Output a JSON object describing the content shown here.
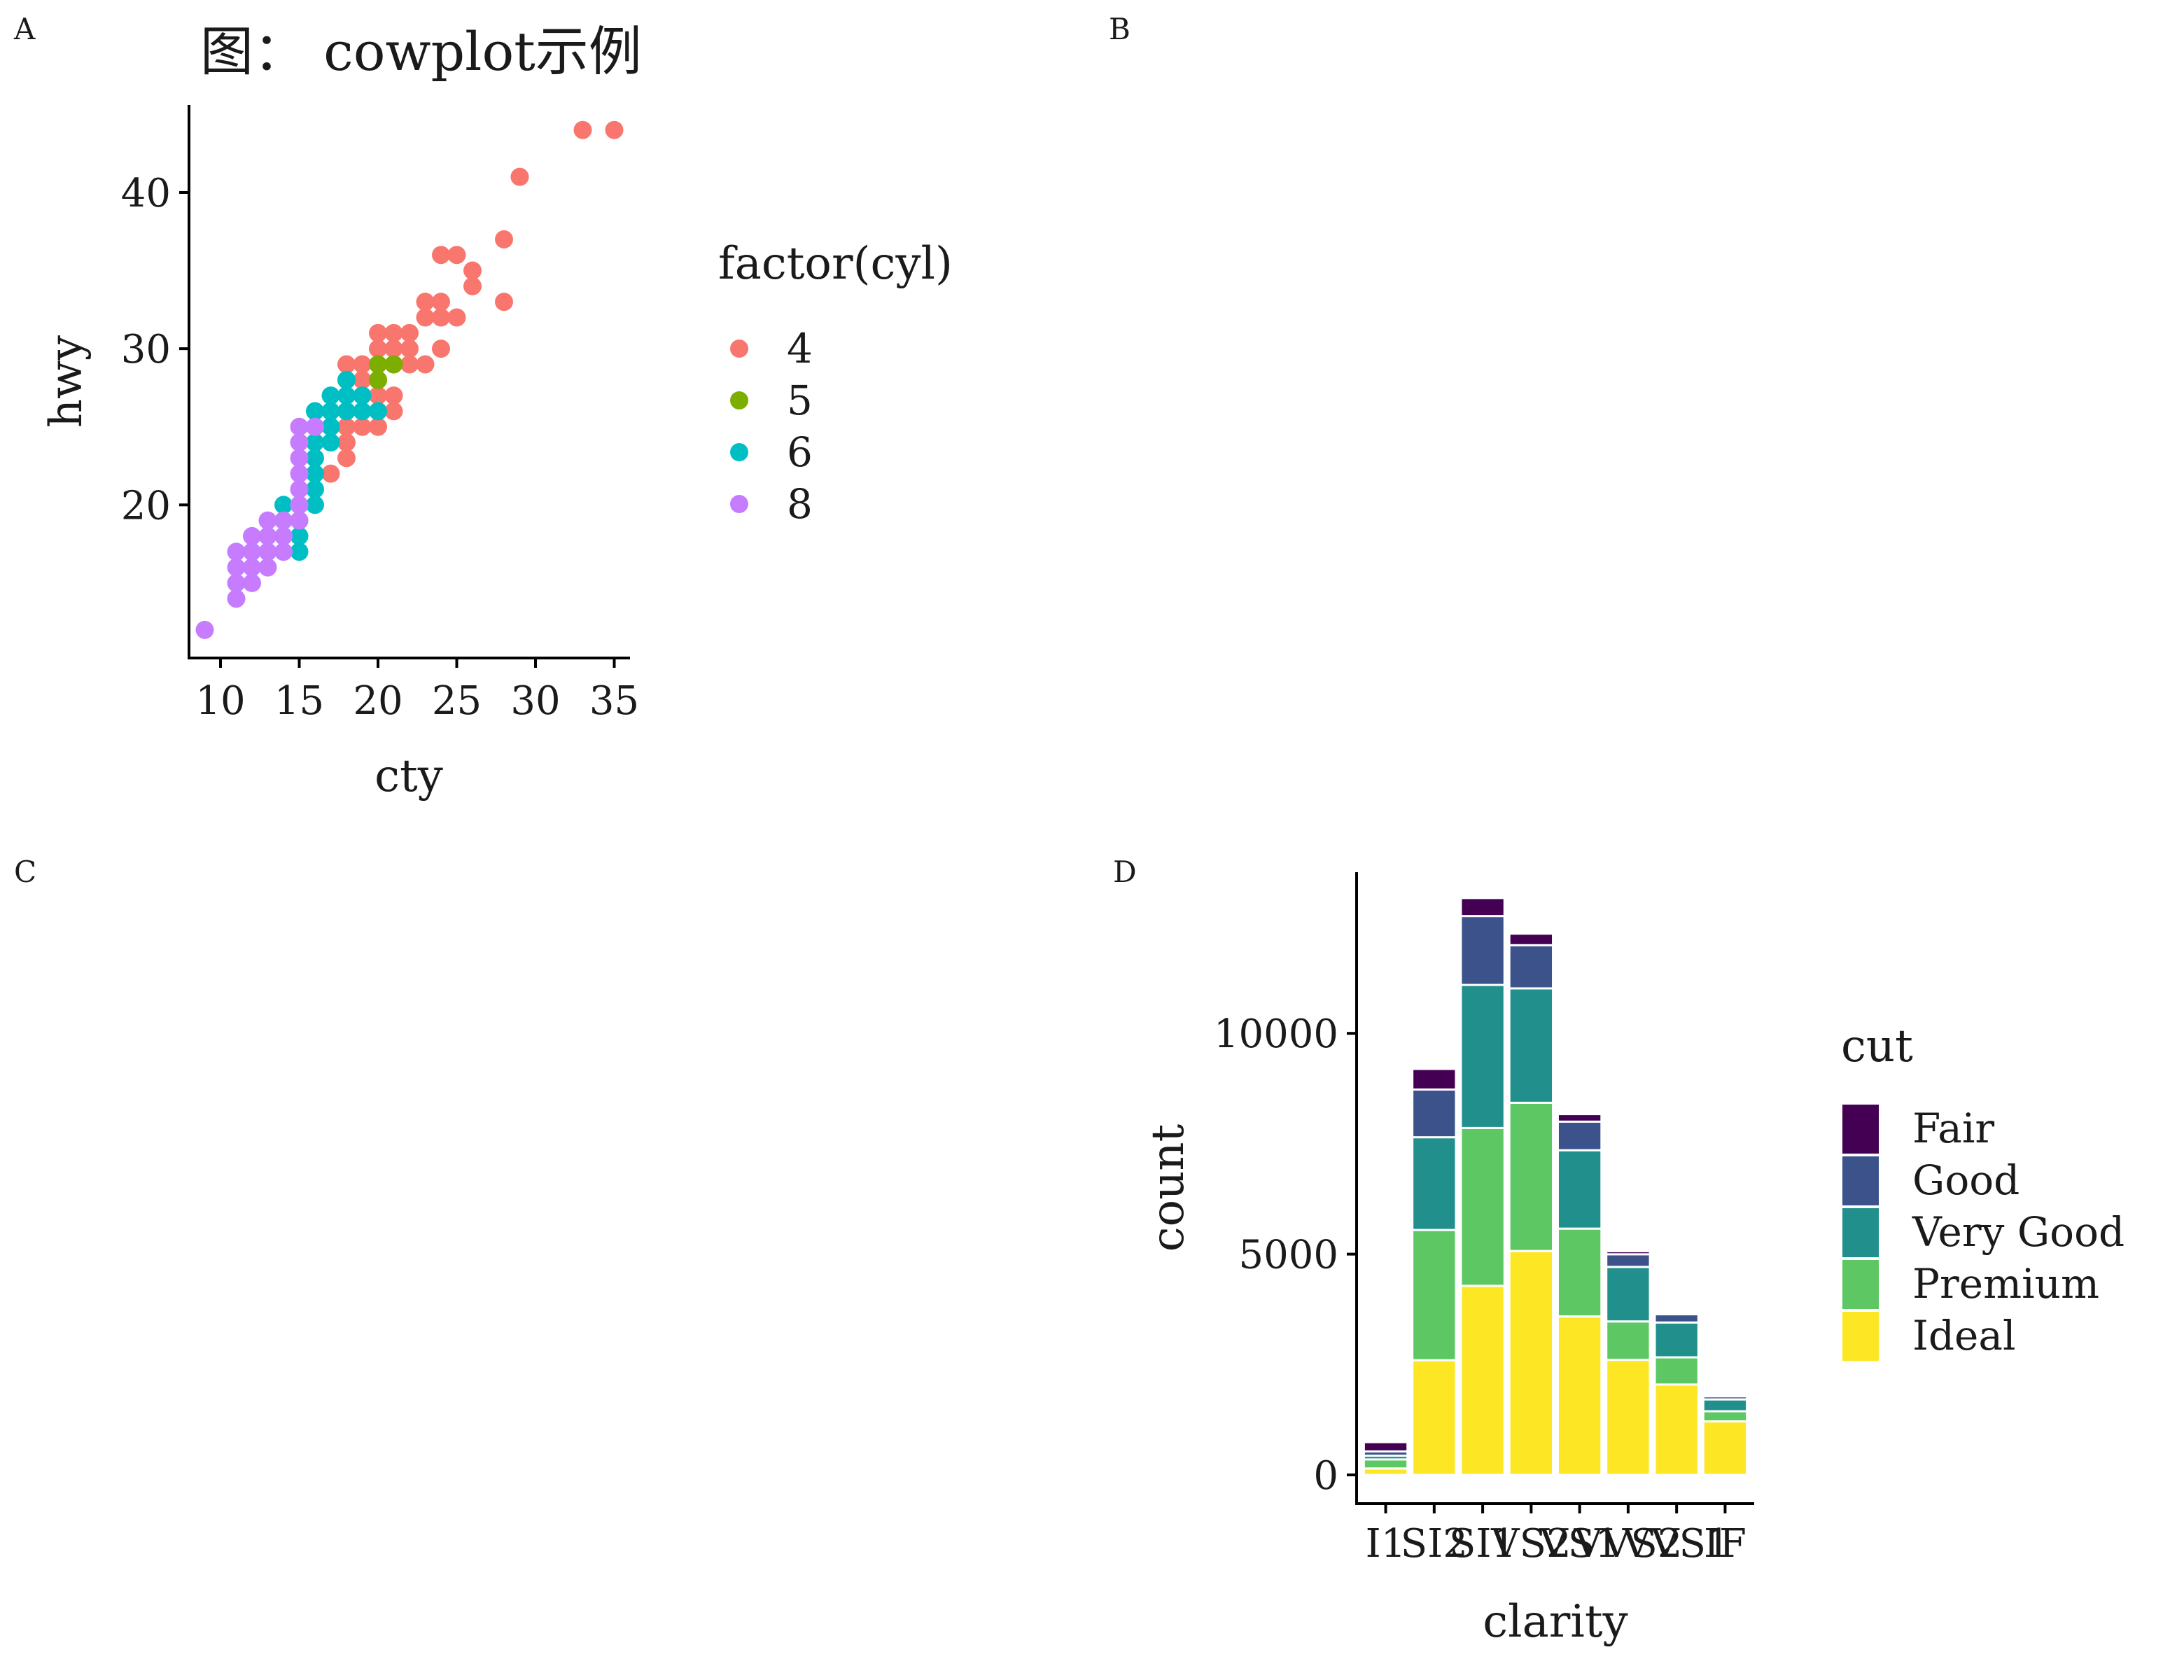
{
  "panel_labels": [
    "A",
    "B",
    "C",
    "D"
  ],
  "chart_data": [
    {
      "panel": "A",
      "type": "scatter",
      "title": "图： cowplot示例",
      "xlabel": "cty",
      "ylabel": "hwy",
      "xlim": [
        8,
        36
      ],
      "ylim": [
        10.2,
        45.6
      ],
      "x_ticks": [
        10,
        15,
        20,
        25,
        30,
        35
      ],
      "y_ticks": [
        20,
        30,
        40
      ],
      "grid": false,
      "legend": {
        "title": "factor(cyl)",
        "position": "right"
      },
      "series": [
        {
          "name": "4",
          "color": "#F8766D",
          "points": [
            [
              15,
              20
            ],
            [
              18,
              25
            ],
            [
              19,
              25
            ],
            [
              20,
              25
            ],
            [
              20,
              26
            ],
            [
              21,
              26
            ],
            [
              19,
              27
            ],
            [
              20,
              27
            ],
            [
              21,
              27
            ],
            [
              18,
              28
            ],
            [
              19,
              28
            ],
            [
              20,
              28
            ],
            [
              21,
              29
            ],
            [
              22,
              29
            ],
            [
              23,
              29
            ],
            [
              18,
              29
            ],
            [
              19,
              29
            ],
            [
              20,
              30
            ],
            [
              21,
              30
            ],
            [
              22,
              30
            ],
            [
              24,
              30
            ],
            [
              21,
              31
            ],
            [
              22,
              31
            ],
            [
              20,
              31
            ],
            [
              23,
              32
            ],
            [
              24,
              32
            ],
            [
              25,
              32
            ],
            [
              23,
              33
            ],
            [
              24,
              33
            ],
            [
              28,
              33
            ],
            [
              26,
              34
            ],
            [
              26,
              35
            ],
            [
              24,
              36
            ],
            [
              25,
              36
            ],
            [
              28,
              37
            ],
            [
              29,
              41
            ],
            [
              33,
              44
            ],
            [
              35,
              44
            ],
            [
              17,
              22
            ],
            [
              18,
              23
            ],
            [
              18,
              24
            ],
            [
              17,
              25
            ]
          ]
        },
        {
          "name": "5",
          "color": "#7CAE00",
          "points": [
            [
              20,
              28
            ],
            [
              20,
              29
            ],
            [
              20,
              28
            ],
            [
              21,
              29
            ]
          ]
        },
        {
          "name": "6",
          "color": "#00BFC4",
          "points": [
            [
              15,
              17
            ],
            [
              15,
              18
            ],
            [
              14,
              18
            ],
            [
              16,
              20
            ],
            [
              14,
              20
            ],
            [
              15,
              19
            ],
            [
              16,
              22
            ],
            [
              16,
              23
            ],
            [
              16,
              24
            ],
            [
              17,
              24
            ],
            [
              16,
              25
            ],
            [
              17,
              25
            ],
            [
              16,
              26
            ],
            [
              17,
              26
            ],
            [
              18,
              26
            ],
            [
              17,
              27
            ],
            [
              18,
              27
            ],
            [
              18,
              28
            ],
            [
              19,
              26
            ],
            [
              19,
              27
            ],
            [
              20,
              26
            ],
            [
              15,
              20
            ],
            [
              16,
              21
            ]
          ]
        },
        {
          "name": "8",
          "color": "#C77CFF",
          "points": [
            [
              9,
              12
            ],
            [
              11,
              14
            ],
            [
              11,
              15
            ],
            [
              11,
              16
            ],
            [
              11,
              17
            ],
            [
              12,
              16
            ],
            [
              12,
              17
            ],
            [
              12,
              18
            ],
            [
              13,
              16
            ],
            [
              13,
              17
            ],
            [
              13,
              18
            ],
            [
              13,
              19
            ],
            [
              14,
              17
            ],
            [
              14,
              18
            ],
            [
              14,
              19
            ],
            [
              15,
              19
            ],
            [
              15,
              20
            ],
            [
              15,
              21
            ],
            [
              15,
              22
            ],
            [
              15,
              23
            ],
            [
              15,
              24
            ],
            [
              15,
              25
            ],
            [
              16,
              25
            ],
            [
              12,
              15
            ]
          ]
        }
      ]
    },
    {
      "panel": "D",
      "type": "bar",
      "stacked": true,
      "xlabel": "clarity",
      "ylabel": "count",
      "ylim": [
        -650,
        13650
      ],
      "y_ticks": [
        0,
        5000,
        10000
      ],
      "categories": [
        "I1",
        "SI2",
        "SI1",
        "VS2",
        "VS1",
        "VVS2",
        "VVS1",
        "IF"
      ],
      "grid": false,
      "legend": {
        "title": "cut",
        "position": "right"
      },
      "series": [
        {
          "name": "Fair",
          "color": "#440154",
          "values": [
            210,
            466,
            408,
            261,
            170,
            69,
            17,
            9
          ]
        },
        {
          "name": "Good",
          "color": "#3B528B",
          "values": [
            96,
            1081,
            1560,
            978,
            648,
            286,
            186,
            71
          ]
        },
        {
          "name": "Very Good",
          "color": "#21908C",
          "values": [
            84,
            2100,
            3240,
            2591,
            1775,
            1235,
            789,
            268
          ]
        },
        {
          "name": "Premium",
          "color": "#5DC863",
          "values": [
            205,
            2949,
            3575,
            3357,
            1989,
            870,
            616,
            230
          ]
        },
        {
          "name": "Ideal",
          "color": "#FDE725",
          "values": [
            146,
            2598,
            4282,
            5071,
            3589,
            2606,
            2047,
            1212
          ]
        }
      ]
    }
  ]
}
